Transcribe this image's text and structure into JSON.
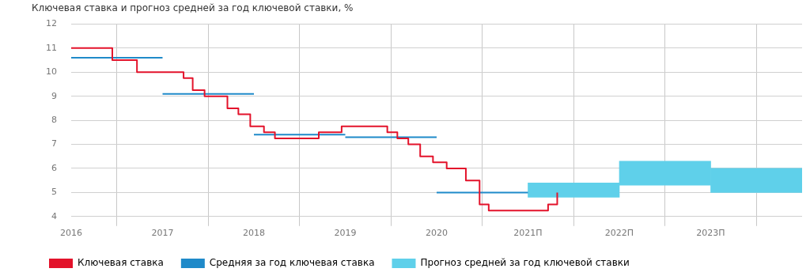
{
  "chart_data": {
    "type": "step",
    "title": "Ключевая ставка и прогноз средней за год ключевой ставки, %",
    "xlim": [
      2016,
      2024
    ],
    "xticks": [
      2016,
      2017,
      2018,
      2019,
      2020,
      {
        "value": 2021,
        "label": "2021П"
      },
      {
        "value": 2022,
        "label": "2022П"
      },
      {
        "value": 2023,
        "label": "2023П"
      }
    ],
    "ylim": [
      4,
      12
    ],
    "yticks": [
      4,
      5,
      6,
      7,
      8,
      9,
      10,
      11,
      12
    ],
    "grid": true,
    "legend": "bottom left",
    "series": [
      {
        "name": "Ключевая ставка",
        "color": "#e3132b",
        "x": [
          2016,
          2016.45,
          2016.72,
          2017.23,
          2017.33,
          2017.46,
          2017.71,
          2017.83,
          2017.96,
          2018.11,
          2018.23,
          2018.71,
          2018.96,
          2019.46,
          2019.57,
          2019.69,
          2019.82,
          2019.96,
          2020.11,
          2020.32,
          2020.47,
          2020.57,
          2021.22,
          2021.32
        ],
        "values": [
          11,
          10.5,
          10,
          9.75,
          9.25,
          9,
          8.5,
          8.25,
          7.75,
          7.5,
          7.25,
          7.5,
          7.75,
          7.5,
          7.25,
          7,
          6.5,
          6.25,
          6,
          5.5,
          4.5,
          4.25,
          4.5,
          5
        ]
      },
      {
        "name": "Средняя за год ключевая ставка",
        "type": "line",
        "color": "#1f8ac9",
        "x": [
          2016,
          2017,
          2017,
          2018,
          2018,
          2019,
          2019,
          2020,
          2020,
          2021
        ],
        "values": [
          10.6,
          10.6,
          9.1,
          9.1,
          7.4,
          7.4,
          7.3,
          7.3,
          5.0,
          5.0
        ]
      },
      {
        "name": "Прогноз средней за год ключевой ставки",
        "type": "bar",
        "color": "#5fd0ea",
        "x": [
          2021.5,
          2022.5,
          2023.5
        ],
        "base": [
          4.8,
          5.3,
          5.0
        ],
        "values": [
          0.6,
          1.0,
          1.0
        ]
      }
    ]
  }
}
